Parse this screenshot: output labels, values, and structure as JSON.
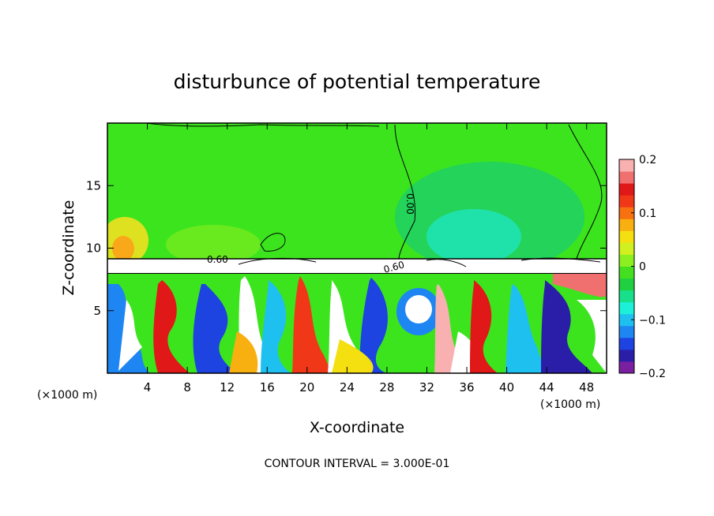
{
  "chart_data": {
    "type": "heatmap",
    "title": "disturbunce of potential temperature",
    "xlabel": "X-coordinate",
    "ylabel": "Z-coordinate",
    "x_unit_note": "(×1000 m)",
    "y_unit_note": "(×1000 m)",
    "xlim": [
      0,
      50
    ],
    "ylim": [
      0,
      20
    ],
    "x_ticks": [
      4,
      8,
      12,
      16,
      20,
      24,
      28,
      32,
      36,
      40,
      44,
      48
    ],
    "x_tick_labels": [
      "4",
      "8",
      "12",
      "16",
      "20",
      "24",
      "28",
      "32",
      "36",
      "40",
      "44",
      "48"
    ],
    "y_ticks": [
      5,
      10,
      15
    ],
    "y_tick_labels": [
      "5",
      "10",
      "15"
    ],
    "colorbar": {
      "range": [
        -0.2,
        0.2
      ],
      "ticks": [
        0.2,
        0.1,
        0,
        -0.1,
        -0.2
      ],
      "tick_labels": [
        "0.2",
        "0.1",
        "0",
        "−0.1",
        "−0.2"
      ],
      "colors": [
        "#7a1fa0",
        "#2a1ea8",
        "#1d43e0",
        "#1e86f2",
        "#1ec0f0",
        "#1cf0d8",
        "#18e08a",
        "#20d040",
        "#44e020",
        "#8cf020",
        "#d0f020",
        "#f4e010",
        "#f8b010",
        "#f87010",
        "#f03818",
        "#e01818",
        "#f07070",
        "#f8b0b0"
      ]
    },
    "contour_labels": [
      "0.60",
      "0.60",
      "0.00"
    ],
    "footnote": "CONTOUR INTERVAL = 3.000E-01"
  }
}
